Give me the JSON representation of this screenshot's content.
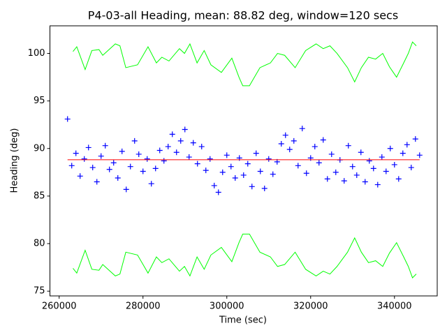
{
  "chart_data": {
    "type": "line",
    "title": "P4-03-all Heading, mean: 88.82 deg, window=120 secs",
    "xlabel": "Time (sec)",
    "ylabel": "Heading (deg)",
    "xlim": [
      257800,
      350200
    ],
    "ylim": [
      74.5,
      102.9
    ],
    "xticks": [
      260000,
      280000,
      300000,
      320000,
      340000
    ],
    "yticks": [
      75,
      80,
      85,
      90,
      95,
      100
    ],
    "series": [
      {
        "color": "#0000ff",
        "marker": "+",
        "line": false,
        "x": [
          262000,
          263000,
          264000,
          265000,
          266000,
          267000,
          268000,
          269000,
          270000,
          271000,
          272000,
          273000,
          274000,
          275000,
          276000,
          277000,
          278000,
          279000,
          280000,
          281000,
          282000,
          283000,
          284000,
          285000,
          286000,
          287000,
          288000,
          289000,
          290000,
          291000,
          292000,
          293000,
          294000,
          295000,
          296000,
          297000,
          298000,
          299000,
          300000,
          301000,
          302000,
          303000,
          304000,
          305000,
          306000,
          307000,
          308000,
          309000,
          310000,
          311000,
          312000,
          313000,
          314000,
          315000,
          316000,
          317000,
          318000,
          319000,
          320000,
          321000,
          322000,
          323000,
          324000,
          325000,
          326000,
          327000,
          328000,
          329000,
          330000,
          331000,
          332000,
          333000,
          334000,
          335000,
          336000,
          337000,
          338000,
          339000,
          340000,
          341000,
          342000,
          343000,
          344000,
          345000,
          346000
        ],
        "values": [
          93.1,
          88.2,
          89.5,
          87.1,
          88.9,
          90.1,
          88.0,
          86.5,
          89.2,
          90.3,
          87.8,
          88.5,
          86.9,
          89.7,
          85.7,
          88.1,
          90.8,
          89.4,
          87.6,
          88.9,
          86.3,
          87.9,
          89.8,
          88.7,
          90.2,
          91.5,
          89.6,
          90.8,
          92.0,
          89.1,
          90.6,
          88.4,
          90.2,
          87.7,
          88.9,
          86.1,
          85.4,
          87.5,
          89.3,
          88.1,
          86.9,
          89.0,
          87.2,
          88.4,
          86.0,
          89.5,
          87.6,
          85.8,
          88.9,
          87.3,
          88.6,
          90.5,
          91.4,
          89.9,
          90.8,
          88.2,
          92.1,
          87.4,
          89.0,
          90.2,
          88.5,
          90.9,
          86.8,
          89.4,
          87.5,
          88.8,
          86.6,
          90.3,
          88.1,
          87.2,
          89.6,
          86.5,
          88.7,
          87.9,
          86.2,
          89.1,
          87.6,
          90.0,
          88.3,
          86.8,
          89.5,
          90.4,
          88.0,
          91.0,
          89.3
        ]
      },
      {
        "color": "#ff0000",
        "marker": null,
        "line": true,
        "x": [
          262000,
          346000
        ],
        "values": [
          88.82,
          88.82
        ]
      },
      {
        "color": "#00ff00",
        "marker": null,
        "line": true,
        "x": [
          263300,
          264200,
          266200,
          267800,
          269500,
          270400,
          273400,
          274500,
          275900,
          278700,
          281200,
          283200,
          284500,
          286200,
          288700,
          289900,
          291200,
          292900,
          294600,
          296200,
          298700,
          301200,
          302900,
          303800,
          305400,
          307900,
          310400,
          312100,
          313800,
          316300,
          318800,
          321300,
          323000,
          324600,
          326300,
          328800,
          330500,
          332100,
          333800,
          335500,
          337200,
          338800,
          340500,
          342200,
          343300,
          344300,
          345200
        ],
        "values": [
          100.2,
          100.7,
          98.3,
          100.3,
          100.4,
          99.8,
          101.0,
          100.8,
          98.5,
          98.8,
          100.7,
          99.0,
          99.6,
          99.2,
          100.5,
          100.0,
          101.0,
          99.0,
          100.3,
          98.8,
          98.0,
          99.5,
          97.5,
          96.6,
          96.6,
          98.5,
          99.0,
          100.0,
          99.8,
          98.5,
          100.3,
          101.0,
          100.5,
          100.8,
          100.0,
          98.5,
          97.0,
          98.5,
          99.6,
          99.4,
          100.0,
          98.6,
          97.5,
          99.0,
          100.0,
          101.2,
          100.8
        ]
      },
      {
        "color": "#00ff00",
        "marker": null,
        "line": true,
        "x": [
          263300,
          264200,
          266200,
          267800,
          269500,
          270400,
          273400,
          274500,
          275900,
          278700,
          281200,
          283200,
          284500,
          286200,
          288700,
          289900,
          291200,
          292900,
          294600,
          296200,
          298700,
          301200,
          302900,
          303800,
          305400,
          307900,
          310400,
          312100,
          313800,
          316300,
          318800,
          321300,
          323000,
          324600,
          326300,
          328800,
          330500,
          332100,
          333800,
          335500,
          337200,
          338800,
          340500,
          342200,
          343300,
          344300,
          345200
        ],
        "values": [
          77.4,
          76.9,
          79.3,
          77.3,
          77.2,
          77.8,
          76.6,
          76.8,
          79.1,
          78.8,
          76.9,
          78.6,
          78.0,
          78.4,
          77.1,
          77.6,
          76.6,
          78.6,
          77.3,
          78.8,
          79.6,
          78.1,
          80.1,
          81.0,
          81.0,
          79.1,
          78.6,
          77.6,
          77.8,
          79.1,
          77.3,
          76.6,
          77.1,
          76.8,
          77.6,
          79.1,
          80.6,
          79.1,
          78.0,
          78.2,
          77.6,
          79.0,
          80.1,
          78.6,
          77.6,
          76.4,
          76.8
        ]
      }
    ]
  }
}
